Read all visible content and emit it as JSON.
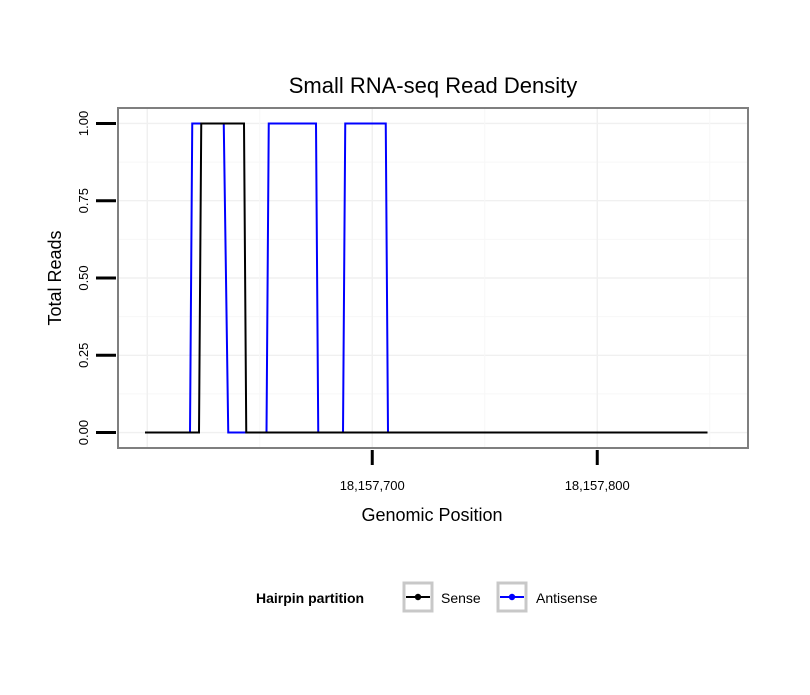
{
  "chart_data": {
    "type": "line",
    "title": "Small RNA-seq Read Density",
    "xlabel": "Genomic Position",
    "ylabel": "Total Reads",
    "xlim": [
      18157587,
      18157867
    ],
    "ylim": [
      -0.05,
      1.05
    ],
    "x_ticks": [
      {
        "value": 18157700,
        "label": "18,157,700"
      },
      {
        "value": 18157800,
        "label": "18,157,800"
      }
    ],
    "y_ticks": [
      {
        "value": 0.0,
        "label": "0.00"
      },
      {
        "value": 0.25,
        "label": "0.25"
      },
      {
        "value": 0.5,
        "label": "0.50"
      },
      {
        "value": 0.75,
        "label": "0.75"
      },
      {
        "value": 1.0,
        "label": "1.00"
      }
    ],
    "grid": true,
    "legend": {
      "title": "Hairpin partition",
      "position": "bottom"
    },
    "series": [
      {
        "name": "Sense",
        "color": "#000000",
        "x": [
          18157599,
          18157623,
          18157624,
          18157643,
          18157644,
          18157849
        ],
        "y": [
          0,
          0,
          1,
          1,
          0,
          0
        ]
      },
      {
        "name": "Antisense",
        "color": "#0000ff",
        "x": [
          18157619,
          18157620,
          18157634,
          18157636,
          18157653,
          18157654,
          18157675,
          18157676,
          18157687,
          18157688,
          18157706,
          18157707,
          18157729
        ],
        "y": [
          0,
          1,
          1,
          0,
          0,
          1,
          1,
          0,
          0,
          1,
          1,
          0,
          0
        ]
      }
    ]
  }
}
